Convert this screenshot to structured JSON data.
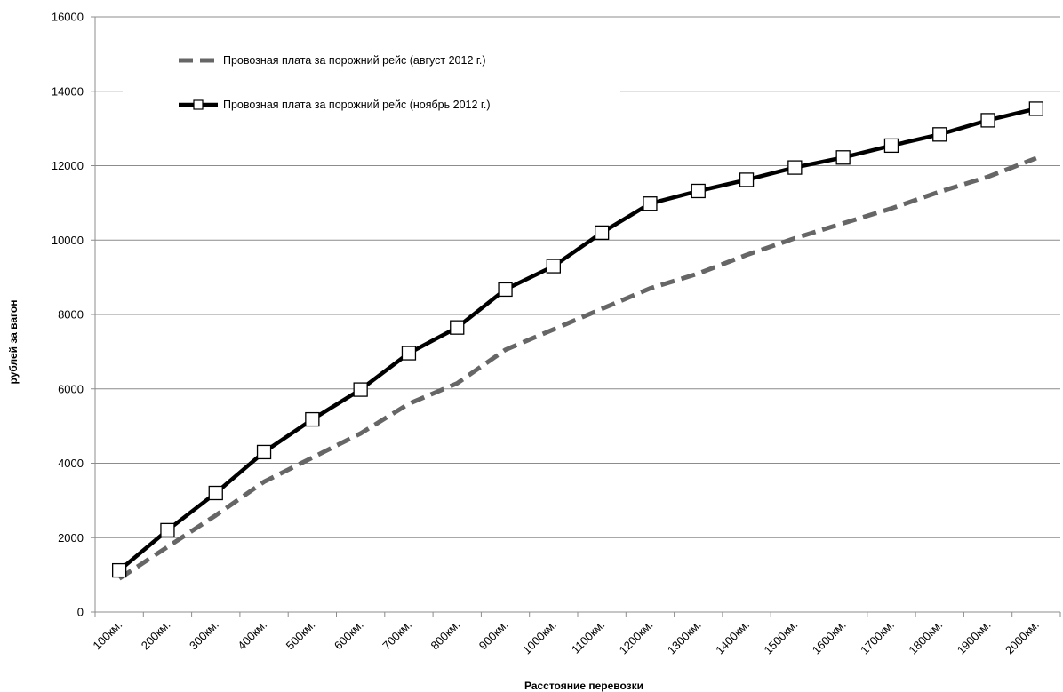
{
  "chart_data": {
    "type": "line",
    "xlabel": "Расстояние  перевозки",
    "ylabel": "рублей за вагон",
    "ylim": [
      0,
      16000
    ],
    "yticks": [
      "0",
      "2000",
      "4000",
      "6000",
      "8000",
      "10000",
      "12000",
      "14000",
      "16000"
    ],
    "categories": [
      "100км.",
      "200км.",
      "300км.",
      "400км.",
      "500км.",
      "600км.",
      "700км.",
      "800км.",
      "900км.",
      "1000км.",
      "1100км.",
      "1200км.",
      "1300км.",
      "1400км.",
      "1500км.",
      "1600км.",
      "1700км.",
      "1800км.",
      "1900км.",
      "2000км."
    ],
    "grid": "horizontal",
    "legend": "top-left",
    "series": [
      {
        "name": "Провозная плата за порожний рейс (август 2012 г.)",
        "values": [
          900,
          1750,
          2600,
          3500,
          4150,
          4800,
          5600,
          6150,
          7050,
          7600,
          8150,
          8700,
          9100,
          9600,
          10050,
          10450,
          10850,
          11300,
          11700,
          12200
        ],
        "color": "#666666",
        "style": "dashed"
      },
      {
        "name": "Провозная плата за порожний рейс (ноябрь 2012 г.)",
        "values": [
          1120,
          2200,
          3200,
          4300,
          5180,
          5980,
          6960,
          7650,
          8670,
          9300,
          10200,
          10980,
          11320,
          11620,
          11950,
          12220,
          12540,
          12840,
          13220,
          13530
        ],
        "color": "#000000",
        "style": "solid-square-markers"
      }
    ]
  }
}
